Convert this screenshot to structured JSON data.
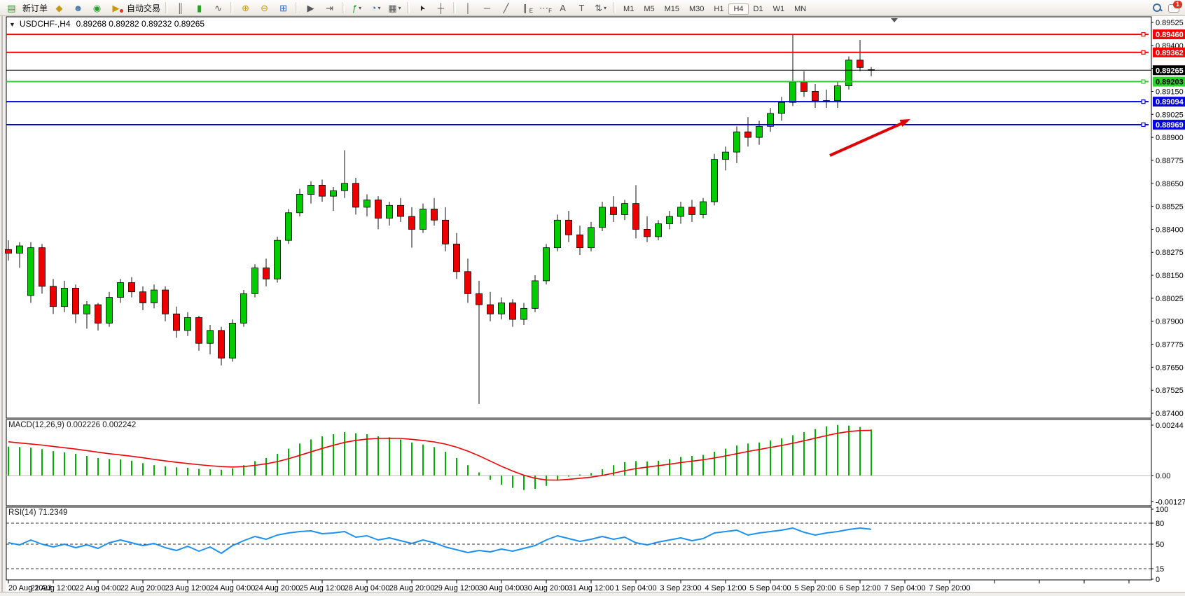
{
  "toolbar": {
    "new_order_label": "新订单",
    "autotrading_label": "自动交易",
    "periods": [
      "M1",
      "M5",
      "M15",
      "M30",
      "H1",
      "H4",
      "D1",
      "W1",
      "MN"
    ],
    "active_period": "H4",
    "chat_badge": "1"
  },
  "icons": {
    "collapse": "▼",
    "caret": "▾",
    "new_order": "▤",
    "market": "◆",
    "community": "☻",
    "signals": "◉",
    "autotrading": "▶",
    "chart_bars": "║",
    "chart_candles": "▮",
    "chart_line": "∿",
    "zoom_in": "⊕",
    "zoom_out": "⊖",
    "tile_windows": "⊞",
    "auto_scroll": "▶",
    "chart_shift": "⇥",
    "indicators": "ƒ",
    "timeframes_clock": "◔",
    "templates": "▦",
    "cursor": "➤",
    "crosshair": "┼",
    "vline": "│",
    "hline": "─",
    "trendline": "╱",
    "channel": "∥",
    "channel_sub": "E",
    "fibo": "⋯",
    "fibo_sub": "F",
    "text": "A",
    "text_label": "T",
    "arrows_tool": "⇅"
  },
  "chart": {
    "symbol_title": "USDCHF-,H4",
    "ohlc_text": "0.89268 0.89282 0.89232 0.89265"
  },
  "indicator_labels": {
    "macd": "MACD(12,26,9) 0.002226 0.002242",
    "rsi": "RSI(14) 71.2349"
  },
  "axis": {
    "price_ticks": [
      "0.89525",
      "0.89400",
      "0.89275",
      "0.89150",
      "0.89025",
      "0.88900",
      "0.88775",
      "0.88650",
      "0.88525",
      "0.88400",
      "0.88275",
      "0.88150",
      "0.88025",
      "0.87900",
      "0.87775",
      "0.87650",
      "0.87525",
      "0.87400"
    ],
    "macd_ticks": [
      {
        "v": 0.00244,
        "label": "0.00244"
      },
      {
        "v": 0.0,
        "label": "0.00"
      },
      {
        "v": -0.001273,
        "label": "-0.001273"
      }
    ],
    "rsi_ticks": [
      {
        "v": 100,
        "label": "100",
        "dashed": false
      },
      {
        "v": 80,
        "label": "80",
        "dashed": true
      },
      {
        "v": 50,
        "label": "50",
        "dashed": true
      },
      {
        "v": 15,
        "label": "15",
        "dashed": true
      },
      {
        "v": 0,
        "label": "0",
        "dashed": false
      }
    ],
    "time_labels": [
      "20 Aug 2023",
      "21 Aug 12:00",
      "22 Aug 04:00",
      "22 Aug 20:00",
      "23 Aug 12:00",
      "24 Aug 04:00",
      "24 Aug 20:00",
      "25 Aug 12:00",
      "28 Aug 04:00",
      "28 Aug 20:00",
      "29 Aug 12:00",
      "30 Aug 04:00",
      "30 Aug 20:00",
      "31 Aug 12:00",
      "1 Sep 04:00",
      "3 Sep 23:00",
      "4 Sep 12:00",
      "5 Sep 04:00",
      "5 Sep 20:00",
      "6 Sep 12:00",
      "7 Sep 04:00",
      "7 Sep 20:00"
    ]
  },
  "hlines": [
    {
      "price": 0.8946,
      "label": "0.89460",
      "color": "#f40000",
      "text_color": "#ffffff"
    },
    {
      "price": 0.89362,
      "label": "0.89362",
      "color": "#f40000",
      "text_color": "#ffffff"
    },
    {
      "price": 0.89203,
      "label": "0.89203",
      "color": "#2fce2f",
      "text_color": "#000000"
    },
    {
      "price": 0.89094,
      "label": "0.89094",
      "color": "#0000e0",
      "text_color": "#ffffff"
    },
    {
      "price": 0.88969,
      "label": "0.88969",
      "color": "#0000e0",
      "text_color": "#ffffff"
    }
  ],
  "current_price": {
    "price": 0.89265,
    "label": "0.89265",
    "badge_color": "#000000",
    "text_color": "#ffffff"
  },
  "colors": {
    "bull": "#00cc00",
    "bear": "#ee0000",
    "wick": "#111111",
    "macd_hist": "#00b000",
    "macd_signal": "#ee0000",
    "rsi_line": "#2090f0",
    "arrow": "#dd0000"
  },
  "chart_data": {
    "type": "candlestick",
    "symbol": "USDCHF",
    "timeframe": "H4",
    "ylim": [
      0.874,
      0.89525
    ],
    "candles": [
      [
        0.8829,
        0.8834,
        0.8823,
        0.8827
      ],
      [
        0.8827,
        0.8833,
        0.8819,
        0.8831
      ],
      [
        0.8804,
        0.8833,
        0.88,
        0.883
      ],
      [
        0.883,
        0.8832,
        0.8805,
        0.8809
      ],
      [
        0.8809,
        0.8813,
        0.8794,
        0.8798
      ],
      [
        0.8798,
        0.8812,
        0.8795,
        0.8808
      ],
      [
        0.8808,
        0.881,
        0.8789,
        0.8794
      ],
      [
        0.8794,
        0.8801,
        0.8786,
        0.8799
      ],
      [
        0.8799,
        0.88,
        0.8785,
        0.8789
      ],
      [
        0.8789,
        0.8806,
        0.8787,
        0.8803
      ],
      [
        0.8803,
        0.8813,
        0.88,
        0.8811
      ],
      [
        0.8811,
        0.8814,
        0.8803,
        0.8806
      ],
      [
        0.8806,
        0.8809,
        0.8796,
        0.88
      ],
      [
        0.88,
        0.881,
        0.8797,
        0.8807
      ],
      [
        0.8807,
        0.8809,
        0.879,
        0.8794
      ],
      [
        0.8794,
        0.8798,
        0.8781,
        0.8785
      ],
      [
        0.8785,
        0.8795,
        0.8782,
        0.8792
      ],
      [
        0.8792,
        0.8793,
        0.8774,
        0.8778
      ],
      [
        0.8778,
        0.8788,
        0.8772,
        0.8785
      ],
      [
        0.8785,
        0.8787,
        0.8766,
        0.877
      ],
      [
        0.877,
        0.8791,
        0.8768,
        0.8789
      ],
      [
        0.8789,
        0.8807,
        0.8787,
        0.8805
      ],
      [
        0.8805,
        0.8821,
        0.8803,
        0.8819
      ],
      [
        0.8819,
        0.8824,
        0.8809,
        0.8813
      ],
      [
        0.8813,
        0.8836,
        0.8811,
        0.8834
      ],
      [
        0.8834,
        0.8851,
        0.8832,
        0.8849
      ],
      [
        0.8849,
        0.8862,
        0.8847,
        0.8859
      ],
      [
        0.8859,
        0.8866,
        0.8854,
        0.8864
      ],
      [
        0.8864,
        0.8867,
        0.8855,
        0.8858
      ],
      [
        0.8858,
        0.8863,
        0.885,
        0.8861
      ],
      [
        0.8861,
        0.8883,
        0.8857,
        0.8865
      ],
      [
        0.8865,
        0.8868,
        0.8848,
        0.8852
      ],
      [
        0.8852,
        0.8859,
        0.8847,
        0.8856
      ],
      [
        0.8856,
        0.8858,
        0.884,
        0.8846
      ],
      [
        0.8846,
        0.8855,
        0.8842,
        0.8853
      ],
      [
        0.8853,
        0.8857,
        0.8844,
        0.8847
      ],
      [
        0.8847,
        0.8852,
        0.883,
        0.884
      ],
      [
        0.884,
        0.8854,
        0.8838,
        0.8851
      ],
      [
        0.8851,
        0.8857,
        0.8842,
        0.8845
      ],
      [
        0.8845,
        0.8852,
        0.8828,
        0.8832
      ],
      [
        0.8832,
        0.8838,
        0.8813,
        0.8817
      ],
      [
        0.8817,
        0.8824,
        0.88,
        0.8805
      ],
      [
        0.8805,
        0.8812,
        0.8745,
        0.8799
      ],
      [
        0.8799,
        0.8806,
        0.879,
        0.8794
      ],
      [
        0.8794,
        0.8803,
        0.8791,
        0.88
      ],
      [
        0.88,
        0.8802,
        0.8787,
        0.8791
      ],
      [
        0.8791,
        0.88,
        0.8788,
        0.8797
      ],
      [
        0.8797,
        0.8815,
        0.8795,
        0.8812
      ],
      [
        0.8812,
        0.8832,
        0.881,
        0.883
      ],
      [
        0.883,
        0.8848,
        0.8828,
        0.8845
      ],
      [
        0.8845,
        0.885,
        0.8833,
        0.8837
      ],
      [
        0.8837,
        0.8842,
        0.8826,
        0.883
      ],
      [
        0.883,
        0.8844,
        0.8828,
        0.8841
      ],
      [
        0.8841,
        0.8855,
        0.8839,
        0.8852
      ],
      [
        0.8852,
        0.8858,
        0.8844,
        0.8848
      ],
      [
        0.8848,
        0.8856,
        0.8845,
        0.8854
      ],
      [
        0.8854,
        0.8864,
        0.8835,
        0.884
      ],
      [
        0.884,
        0.8847,
        0.8833,
        0.8836
      ],
      [
        0.8836,
        0.8845,
        0.8834,
        0.8843
      ],
      [
        0.8843,
        0.885,
        0.884,
        0.8847
      ],
      [
        0.8847,
        0.8855,
        0.8843,
        0.8852
      ],
      [
        0.8852,
        0.8856,
        0.8844,
        0.8848
      ],
      [
        0.8848,
        0.8857,
        0.8846,
        0.8855
      ],
      [
        0.8855,
        0.8881,
        0.8853,
        0.8878
      ],
      [
        0.8878,
        0.8885,
        0.8872,
        0.8882
      ],
      [
        0.8882,
        0.8896,
        0.8876,
        0.8893
      ],
      [
        0.8893,
        0.8901,
        0.8885,
        0.889
      ],
      [
        0.889,
        0.8899,
        0.8886,
        0.8896
      ],
      [
        0.8896,
        0.8906,
        0.8893,
        0.8903
      ],
      [
        0.8903,
        0.8912,
        0.8899,
        0.8909
      ],
      [
        0.8909,
        0.8946,
        0.8907,
        0.892
      ],
      [
        0.892,
        0.8926,
        0.8912,
        0.8915
      ],
      [
        0.8915,
        0.8919,
        0.8906,
        0.891
      ],
      [
        0.891,
        0.8916,
        0.8906,
        0.891
      ],
      [
        0.891,
        0.892,
        0.8906,
        0.8918
      ],
      [
        0.8918,
        0.8934,
        0.8916,
        0.8932
      ],
      [
        0.8932,
        0.8943,
        0.8926,
        0.8928
      ],
      [
        0.89268,
        0.89282,
        0.89232,
        0.89265
      ]
    ],
    "macd": {
      "params": "12,26,9",
      "value": 0.002226,
      "signal_value": 0.002242,
      "histogram": [
        0.0014,
        0.00138,
        0.00135,
        0.00128,
        0.00118,
        0.00112,
        0.00105,
        0.00095,
        0.00085,
        0.0008,
        0.00078,
        0.00072,
        0.0006,
        0.0005,
        0.00045,
        0.0004,
        0.00038,
        0.00032,
        0.0003,
        0.00028,
        0.00035,
        0.0005,
        0.0007,
        0.00085,
        0.00105,
        0.0013,
        0.00155,
        0.00175,
        0.0019,
        0.002,
        0.0021,
        0.00205,
        0.002,
        0.0019,
        0.00185,
        0.00175,
        0.0016,
        0.0015,
        0.00138,
        0.00115,
        0.00085,
        0.0005,
        0.00015,
        -0.0002,
        -0.00045,
        -0.0006,
        -0.0007,
        -0.00065,
        -0.0005,
        -0.00025,
        -5e-05,
        5e-05,
        0.00012,
        0.0003,
        0.0005,
        0.00065,
        0.0007,
        0.00068,
        0.00072,
        0.0008,
        0.0009,
        0.00095,
        0.001,
        0.00115,
        0.0013,
        0.00145,
        0.00155,
        0.0016,
        0.0017,
        0.0018,
        0.00195,
        0.0021,
        0.00225,
        0.00238,
        0.00245,
        0.00242,
        0.00235,
        0.002226
      ]
    },
    "rsi": {
      "period": 14,
      "value": 71.2349,
      "values": [
        52,
        49,
        56,
        50,
        46,
        50,
        45,
        49,
        44,
        52,
        56,
        52,
        48,
        51,
        45,
        41,
        47,
        40,
        46,
        37,
        48,
        55,
        61,
        57,
        63,
        66,
        68,
        69,
        65,
        66,
        68,
        60,
        62,
        56,
        59,
        55,
        51,
        56,
        52,
        46,
        42,
        38,
        41,
        39,
        43,
        40,
        44,
        48,
        56,
        62,
        58,
        54,
        57,
        61,
        57,
        60,
        52,
        49,
        53,
        56,
        59,
        55,
        58,
        66,
        68,
        70,
        63,
        66,
        68,
        70,
        73,
        67,
        63,
        66,
        68,
        71,
        73,
        71.2349
      ]
    }
  }
}
